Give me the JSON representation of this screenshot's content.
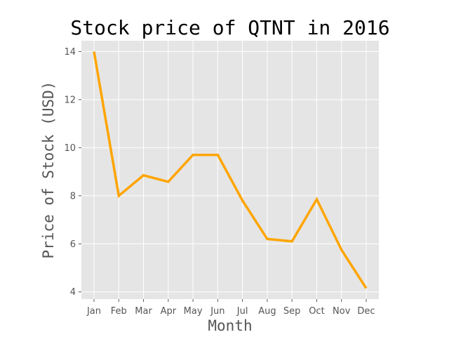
{
  "chart_data": {
    "type": "line",
    "title": "Stock price of QTNT in 2016",
    "xlabel": "Month",
    "ylabel": "Price of Stock (USD)",
    "categories": [
      "Jan",
      "Feb",
      "Mar",
      "Apr",
      "May",
      "Jun",
      "Jul",
      "Aug",
      "Sep",
      "Oct",
      "Nov",
      "Dec"
    ],
    "series": [
      {
        "values": [
          14.0,
          8.0,
          8.85,
          8.58,
          9.7,
          9.7,
          7.8,
          6.2,
          6.1,
          7.85,
          5.75,
          4.15
        ],
        "color": "#FFA500"
      }
    ],
    "yticks": [
      4,
      6,
      8,
      10,
      12,
      14
    ],
    "ylim": [
      3.7,
      14.45
    ],
    "grid": true,
    "background": "#E5E5E5",
    "grid_color": "#FFFFFF"
  }
}
